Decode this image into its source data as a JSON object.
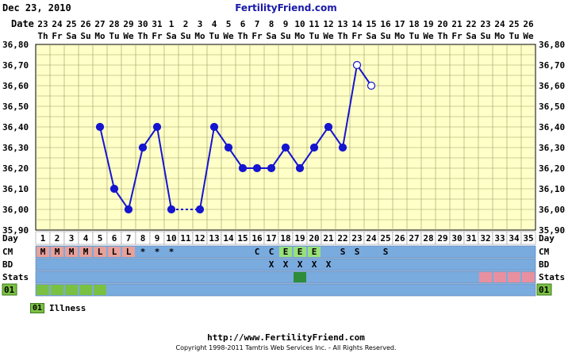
{
  "header": {
    "date": "Dec 23, 2010",
    "site": "FertilityFriend.com"
  },
  "axis": {
    "date_label": "Date",
    "day_label": "Day",
    "temp_ticks": [
      "36,80",
      "36,70",
      "36,60",
      "36,50",
      "36,40",
      "36,30",
      "36,20",
      "36,10",
      "36,00",
      "35,90"
    ]
  },
  "row_labels": {
    "cm": "CM",
    "bd": "BD",
    "stats": "Stats",
    "code": "01"
  },
  "dates": [
    "23",
    "24",
    "25",
    "26",
    "27",
    "28",
    "29",
    "30",
    "31",
    "1",
    "2",
    "3",
    "4",
    "5",
    "6",
    "7",
    "8",
    "9",
    "10",
    "11",
    "12",
    "13",
    "14",
    "15",
    "16",
    "17",
    "18",
    "19",
    "20",
    "21",
    "22",
    "23",
    "24",
    "25",
    "26"
  ],
  "weekdays": [
    "Th",
    "Fr",
    "Sa",
    "Su",
    "Mo",
    "Tu",
    "We",
    "Th",
    "Fr",
    "Sa",
    "Su",
    "Mo",
    "Tu",
    "We",
    "Th",
    "Fr",
    "Sa",
    "Su",
    "Mo",
    "Tu",
    "We",
    "Th",
    "Fr",
    "Sa",
    "Su",
    "Mo",
    "Tu",
    "We",
    "Th",
    "Fr",
    "Sa",
    "Su",
    "Mo",
    "Tu",
    "We"
  ],
  "cm_row": [
    "M",
    "M",
    "M",
    "M",
    "L",
    "L",
    "L",
    "*",
    "*",
    "*",
    "",
    "",
    "",
    "",
    "",
    "C",
    "C",
    "E",
    "E",
    "E",
    "",
    "S",
    "S",
    "",
    "S",
    "",
    "",
    "",
    "",
    "",
    "",
    "",
    "",
    "",
    ""
  ],
  "bd_row": [
    "",
    "",
    "",
    "",
    "",
    "",
    "",
    "",
    "",
    "",
    "",
    "",
    "",
    "",
    "",
    "",
    "X",
    "X",
    "X",
    "X",
    "X",
    "",
    "",
    "",
    "",
    "",
    "",
    "",
    "",
    "",
    "",
    "",
    "",
    "",
    ""
  ],
  "legend": {
    "code": "01",
    "label": "Illness"
  },
  "footer": {
    "url": "http://www.FertilityFriend.com",
    "copyright": "Copyright 1998-2011 Tamtris Web Services Inc. - All Rights Reserved."
  },
  "colors": {
    "grid_bg": "#ffffc8",
    "grid_line": "#9a9a60",
    "line": "#1515d0",
    "row_blue": "#7aabdf",
    "menses": "#e8a09a",
    "fertile": "#9ae07a",
    "green_code": "#7ac043",
    "stats_dark": "#2e8c3a",
    "stats_pink": "#e890a0"
  },
  "chart_data": {
    "type": "line",
    "xlabel": "Day",
    "ylabel": "",
    "ylim": [
      35.9,
      36.8
    ],
    "x": [
      1,
      2,
      3,
      4,
      5,
      6,
      7,
      8,
      9,
      10,
      11,
      12,
      13,
      14,
      15,
      16,
      17,
      18,
      19,
      20,
      21,
      22,
      23,
      24,
      25,
      26,
      27,
      28,
      29,
      30,
      31,
      32,
      33,
      34,
      35
    ],
    "series": [
      {
        "values": [
          null,
          null,
          null,
          null,
          36.4,
          36.1,
          36.0,
          36.3,
          36.4,
          36.0,
          null,
          36.0,
          36.4,
          36.3,
          36.2,
          36.2,
          36.2,
          36.3,
          36.2,
          36.3,
          36.4,
          36.3,
          36.7,
          36.6,
          null,
          null,
          null,
          null,
          null,
          null,
          null,
          null,
          null,
          null,
          null
        ],
        "open_points": [
          23,
          24
        ],
        "dotted_segments": [
          [
            10,
            12
          ]
        ]
      }
    ]
  }
}
